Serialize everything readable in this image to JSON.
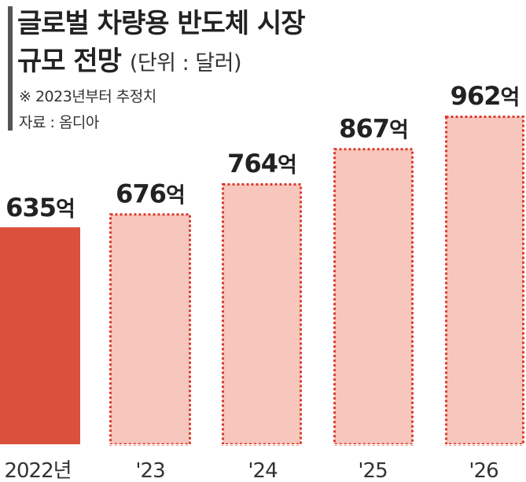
{
  "header": {
    "title_line1": "글로벌 차량용 반도체 시장",
    "title_line2": "규모 전망",
    "unit_note": "(단위 : 달러)",
    "estimate_note": "※ 2023년부터 추정치",
    "source_note": "자료 : 옴디아"
  },
  "chart_data": {
    "type": "bar",
    "title": "글로벌 차량용 반도체 시장 규모 전망",
    "unit": "달러",
    "categories": [
      "2022년",
      "'23",
      "'24",
      "'25",
      "'26"
    ],
    "values": [
      635,
      676,
      764,
      867,
      962
    ],
    "value_suffix": "억",
    "estimated": [
      false,
      true,
      true,
      true,
      true
    ],
    "colors": {
      "actual": "#d9503c",
      "estimate_fill": "#f7c6bc",
      "estimate_border": "#d93a2b"
    },
    "grid": false,
    "legend": "none"
  }
}
